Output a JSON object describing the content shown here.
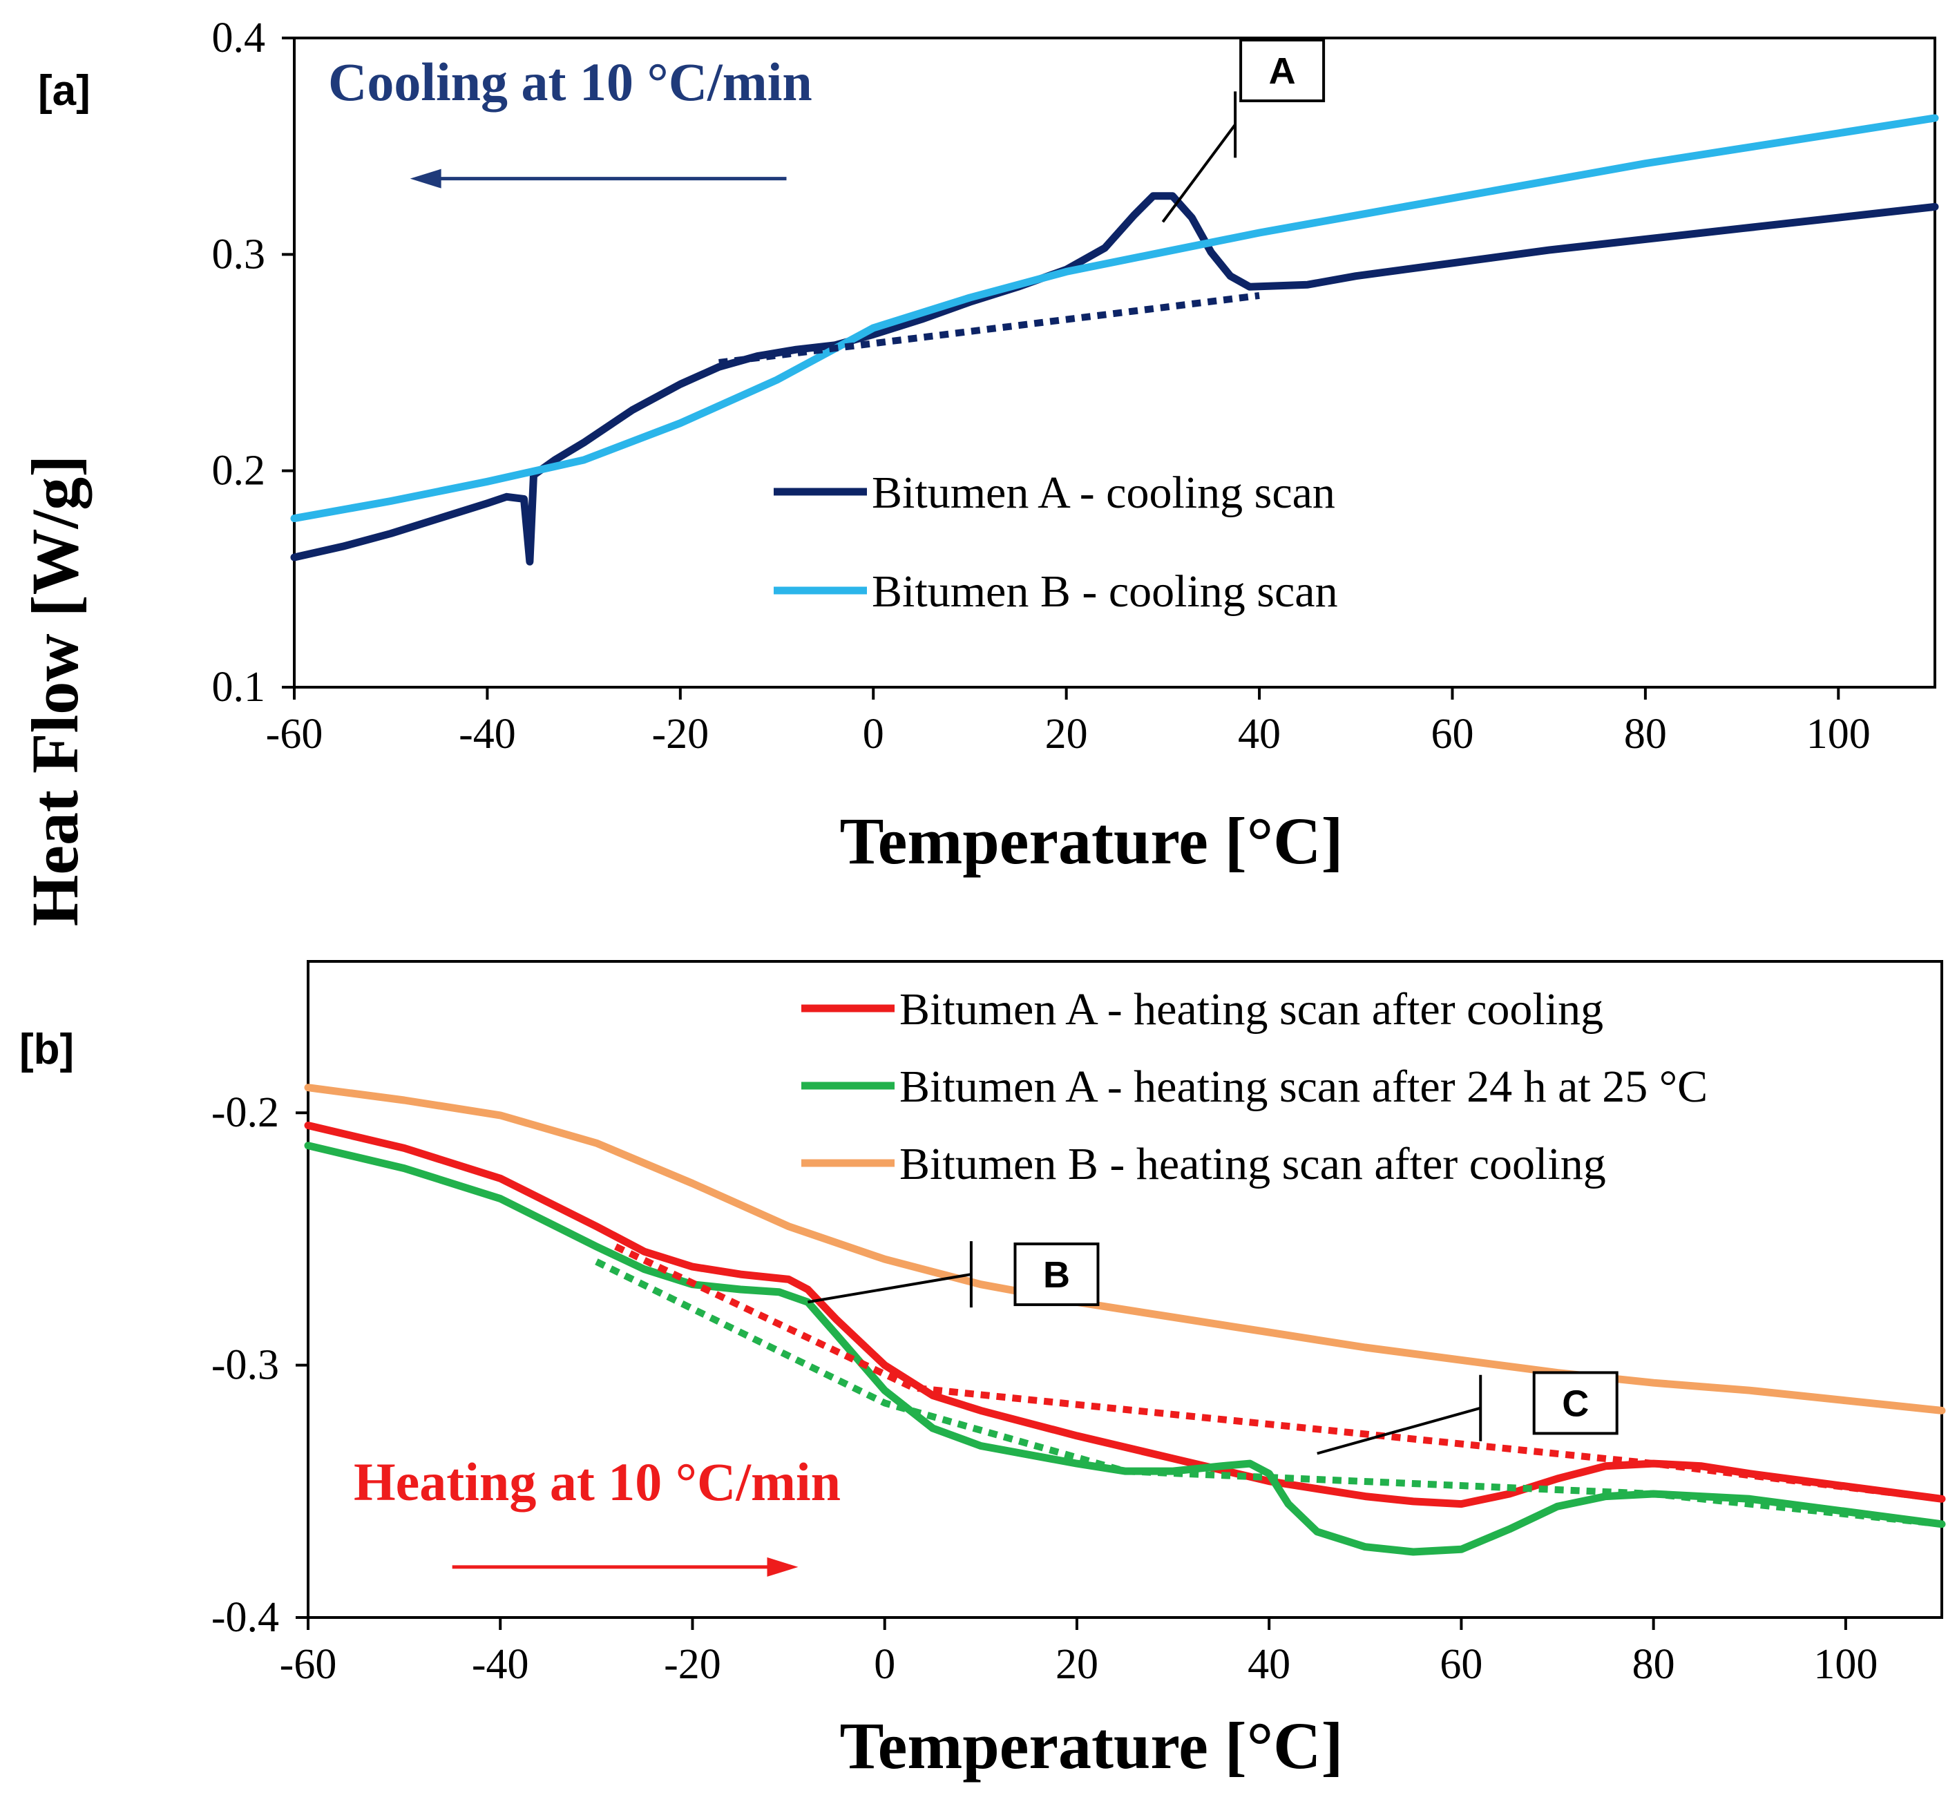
{
  "colors": {
    "bitumen_a_cooling": "#0d2466",
    "bitumen_b_cooling": "#2bb5ea",
    "bitumen_a_heating": "#ee1c1c",
    "bitumen_a_24h": "#22b14c",
    "bitumen_b_heating": "#f4a261",
    "cooling_text": "#1f3a7a",
    "heating_text": "#ee1c1c"
  },
  "shared": {
    "ylabel": "Heat Flow [W/g]"
  },
  "chart_data": [
    {
      "type": "line",
      "panel_label": "[a]",
      "xlabel": "Temperature [°C]",
      "xlim": [
        -60,
        110
      ],
      "ylim": [
        0.1,
        0.4
      ],
      "x_ticks": [
        "-60",
        "-40",
        "-20",
        "0",
        "20",
        "40",
        "60",
        "80",
        "100"
      ],
      "x_tick_values": [
        -60,
        -40,
        -20,
        0,
        20,
        40,
        60,
        80,
        100
      ],
      "y_ticks": [
        "0.1",
        "0.2",
        "0.3",
        "0.4"
      ],
      "y_tick_values": [
        0.1,
        0.2,
        0.3,
        0.4
      ],
      "grid": false,
      "legend_placement": "center",
      "annotation_text": "Cooling at 10 °C/min",
      "arrow_direction": "left",
      "arrow_from": [
        -9,
        0.335
      ],
      "arrow_to": [
        -48,
        0.335
      ],
      "callouts": [
        {
          "label": "A",
          "line_from": [
            30,
            0.315
          ],
          "line_to": [
            37.5,
            0.36
          ],
          "box_at": [
            38.5,
            0.385
          ]
        }
      ],
      "series": [
        {
          "name": "Bitumen A - cooling scan",
          "color_key": "bitumen_a_cooling",
          "style": "solid",
          "points": [
            [
              -60,
              0.16
            ],
            [
              -55,
              0.165
            ],
            [
              -50,
              0.171
            ],
            [
              -45,
              0.178
            ],
            [
              -40,
              0.185
            ],
            [
              -38,
              0.188
            ],
            [
              -36.2,
              0.187
            ],
            [
              -35.6,
              0.158
            ],
            [
              -35.2,
              0.198
            ],
            [
              -33,
              0.205
            ],
            [
              -30,
              0.213
            ],
            [
              -25,
              0.228
            ],
            [
              -20,
              0.24
            ],
            [
              -16,
              0.248
            ],
            [
              -12,
              0.253
            ],
            [
              -8,
              0.256
            ],
            [
              -4,
              0.258
            ],
            [
              0,
              0.263
            ],
            [
              5,
              0.27
            ],
            [
              10,
              0.278
            ],
            [
              15,
              0.285
            ],
            [
              20,
              0.293
            ],
            [
              24,
              0.303
            ],
            [
              27,
              0.318
            ],
            [
              29,
              0.327
            ],
            [
              31,
              0.327
            ],
            [
              33,
              0.317
            ],
            [
              35,
              0.301
            ],
            [
              37,
              0.29
            ],
            [
              39,
              0.285
            ],
            [
              45,
              0.286
            ],
            [
              50,
              0.29
            ],
            [
              60,
              0.296
            ],
            [
              70,
              0.302
            ],
            [
              80,
              0.307
            ],
            [
              90,
              0.312
            ],
            [
              100,
              0.317
            ],
            [
              110,
              0.322
            ]
          ]
        },
        {
          "name": "Bitumen B - cooling scan",
          "color_key": "bitumen_b_cooling",
          "style": "solid",
          "points": [
            [
              -60,
              0.178
            ],
            [
              -50,
              0.186
            ],
            [
              -40,
              0.195
            ],
            [
              -30,
              0.205
            ],
            [
              -20,
              0.222
            ],
            [
              -10,
              0.242
            ],
            [
              0,
              0.266
            ],
            [
              10,
              0.28
            ],
            [
              20,
              0.292
            ],
            [
              30,
              0.301
            ],
            [
              40,
              0.31
            ],
            [
              50,
              0.318
            ],
            [
              60,
              0.326
            ],
            [
              70,
              0.334
            ],
            [
              80,
              0.342
            ],
            [
              90,
              0.349
            ],
            [
              100,
              0.356
            ],
            [
              110,
              0.363
            ]
          ]
        },
        {
          "name": "",
          "color_key": "bitumen_a_cooling",
          "style": "dotted",
          "points": [
            [
              -16,
              0.25
            ],
            [
              40,
              0.281
            ]
          ]
        }
      ]
    },
    {
      "type": "line",
      "panel_label": "[b]",
      "xlabel": "Temperature [°C]",
      "xlim": [
        -60,
        110
      ],
      "ylim": [
        -0.4,
        -0.14
      ],
      "x_ticks": [
        "-60",
        "-40",
        "-20",
        "0",
        "20",
        "40",
        "60",
        "80",
        "100"
      ],
      "x_tick_values": [
        -60,
        -40,
        -20,
        0,
        20,
        40,
        60,
        80,
        100
      ],
      "y_ticks": [
        "-0.4",
        "-0.3",
        "-0.2"
      ],
      "y_tick_values": [
        -0.4,
        -0.3,
        -0.2
      ],
      "grid": false,
      "legend_placement": "top-right",
      "annotation_text": "Heating at 10 °C/min",
      "arrow_direction": "right",
      "arrow_from": [
        -45,
        -0.38
      ],
      "arrow_to": [
        -9,
        -0.38
      ],
      "callouts": [
        {
          "label": "B",
          "line_from": [
            -8,
            -0.275
          ],
          "line_to": [
            9,
            -0.264
          ],
          "box_at": [
            14,
            -0.264
          ]
        },
        {
          "label": "C",
          "line_from": [
            45,
            -0.335
          ],
          "line_to": [
            62,
            -0.317
          ],
          "box_at": [
            68,
            -0.315
          ]
        }
      ],
      "series": [
        {
          "name": "Bitumen A - heating scan after cooling",
          "color_key": "bitumen_a_heating",
          "style": "solid",
          "points": [
            [
              -60,
              -0.205
            ],
            [
              -50,
              -0.214
            ],
            [
              -40,
              -0.226
            ],
            [
              -30,
              -0.245
            ],
            [
              -25,
              -0.255
            ],
            [
              -20,
              -0.261
            ],
            [
              -15,
              -0.264
            ],
            [
              -10,
              -0.266
            ],
            [
              -8,
              -0.27
            ],
            [
              -5,
              -0.282
            ],
            [
              0,
              -0.3
            ],
            [
              5,
              -0.312
            ],
            [
              10,
              -0.318
            ],
            [
              20,
              -0.328
            ],
            [
              30,
              -0.337
            ],
            [
              40,
              -0.346
            ],
            [
              50,
              -0.352
            ],
            [
              55,
              -0.354
            ],
            [
              60,
              -0.355
            ],
            [
              65,
              -0.351
            ],
            [
              70,
              -0.345
            ],
            [
              75,
              -0.34
            ],
            [
              80,
              -0.339
            ],
            [
              85,
              -0.34
            ],
            [
              90,
              -0.343
            ],
            [
              100,
              -0.348
            ],
            [
              110,
              -0.353
            ]
          ]
        },
        {
          "name": "Bitumen A - heating scan after 24 h at 25 °C",
          "color_key": "bitumen_a_24h",
          "style": "solid",
          "points": [
            [
              -60,
              -0.213
            ],
            [
              -50,
              -0.222
            ],
            [
              -40,
              -0.234
            ],
            [
              -30,
              -0.253
            ],
            [
              -25,
              -0.262
            ],
            [
              -20,
              -0.268
            ],
            [
              -15,
              -0.27
            ],
            [
              -11,
              -0.271
            ],
            [
              -8,
              -0.275
            ],
            [
              -5,
              -0.288
            ],
            [
              0,
              -0.31
            ],
            [
              5,
              -0.325
            ],
            [
              10,
              -0.332
            ],
            [
              20,
              -0.339
            ],
            [
              25,
              -0.342
            ],
            [
              30,
              -0.342
            ],
            [
              35,
              -0.34
            ],
            [
              38,
              -0.339
            ],
            [
              40,
              -0.343
            ],
            [
              42,
              -0.355
            ],
            [
              45,
              -0.366
            ],
            [
              50,
              -0.372
            ],
            [
              55,
              -0.374
            ],
            [
              60,
              -0.373
            ],
            [
              65,
              -0.365
            ],
            [
              70,
              -0.356
            ],
            [
              75,
              -0.352
            ],
            [
              80,
              -0.351
            ],
            [
              90,
              -0.353
            ],
            [
              100,
              -0.358
            ],
            [
              110,
              -0.363
            ]
          ]
        },
        {
          "name": "Bitumen B - heating scan after cooling",
          "color_key": "bitumen_b_heating",
          "style": "solid",
          "points": [
            [
              -60,
              -0.19
            ],
            [
              -50,
              -0.195
            ],
            [
              -40,
              -0.201
            ],
            [
              -30,
              -0.212
            ],
            [
              -20,
              -0.228
            ],
            [
              -10,
              -0.245
            ],
            [
              0,
              -0.258
            ],
            [
              10,
              -0.268
            ],
            [
              20,
              -0.275
            ],
            [
              30,
              -0.281
            ],
            [
              40,
              -0.287
            ],
            [
              50,
              -0.293
            ],
            [
              60,
              -0.298
            ],
            [
              70,
              -0.303
            ],
            [
              80,
              -0.307
            ],
            [
              90,
              -0.31
            ],
            [
              100,
              -0.314
            ],
            [
              110,
              -0.318
            ]
          ]
        },
        {
          "name": "",
          "color_key": "bitumen_a_heating",
          "style": "dotted",
          "points": [
            [
              -28,
              -0.253
            ],
            [
              3,
              -0.309
            ],
            [
              80,
              -0.339
            ],
            [
              110,
              -0.353
            ]
          ]
        },
        {
          "name": "",
          "color_key": "bitumen_a_24h",
          "style": "dotted",
          "points": [
            [
              -30,
              -0.259
            ],
            [
              0,
              -0.315
            ],
            [
              25,
              -0.342
            ],
            [
              80,
              -0.351
            ],
            [
              110,
              -0.363
            ]
          ]
        }
      ]
    }
  ]
}
